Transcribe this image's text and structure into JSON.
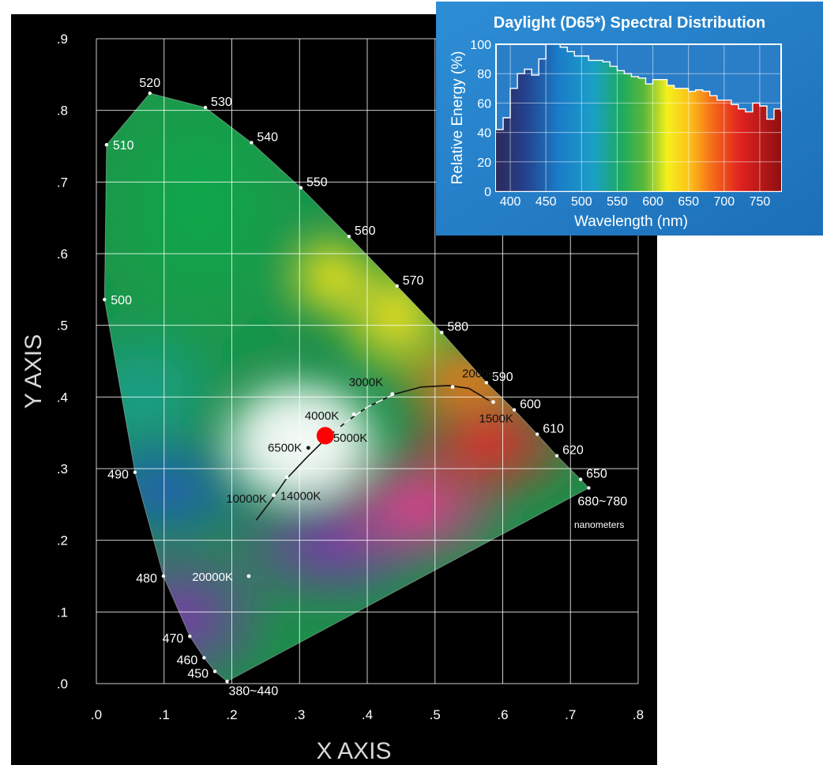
{
  "chart_data": [
    {
      "type": "scatter",
      "name": "chromaticity-diagram",
      "xlabel": "X  AXIS",
      "ylabel": "Y AXIS",
      "xlim": [
        0,
        0.8
      ],
      "ylim": [
        0,
        0.9
      ],
      "grid": true,
      "x_ticks": [
        {
          "v": 0.0,
          "label": ".0"
        },
        {
          "v": 0.1,
          "label": ".1"
        },
        {
          "v": 0.2,
          "label": ".2"
        },
        {
          "v": 0.3,
          "label": ".3"
        },
        {
          "v": 0.4,
          "label": ".4"
        },
        {
          "v": 0.5,
          "label": ".5"
        },
        {
          "v": 0.6,
          "label": ".6"
        },
        {
          "v": 0.7,
          "label": ".7"
        },
        {
          "v": 0.8,
          "label": ".8"
        }
      ],
      "y_ticks": [
        {
          "v": 0.0,
          "label": ".0"
        },
        {
          "v": 0.1,
          "label": ".1"
        },
        {
          "v": 0.2,
          "label": ".2"
        },
        {
          "v": 0.3,
          "label": ".3"
        },
        {
          "v": 0.4,
          "label": ".4"
        },
        {
          "v": 0.5,
          "label": ".5"
        },
        {
          "v": 0.6,
          "label": ".6"
        },
        {
          "v": 0.7,
          "label": ".7"
        },
        {
          "v": 0.8,
          "label": ".8"
        },
        {
          "v": 0.9,
          "label": ".9"
        }
      ],
      "spectral_locus": [
        {
          "label": "380~440",
          "x": 0.193,
          "y": 0.003
        },
        {
          "label": "450",
          "x": 0.175,
          "y": 0.017
        },
        {
          "label": "460",
          "x": 0.159,
          "y": 0.036
        },
        {
          "label": "470",
          "x": 0.138,
          "y": 0.066
        },
        {
          "label": "480",
          "x": 0.099,
          "y": 0.15
        },
        {
          "label": "490",
          "x": 0.057,
          "y": 0.295
        },
        {
          "label": "500",
          "x": 0.012,
          "y": 0.536
        },
        {
          "label": "510",
          "x": 0.015,
          "y": 0.752
        },
        {
          "label": "520",
          "x": 0.079,
          "y": 0.824
        },
        {
          "label": "530",
          "x": 0.161,
          "y": 0.804
        },
        {
          "label": "540",
          "x": 0.229,
          "y": 0.755
        },
        {
          "label": "550",
          "x": 0.302,
          "y": 0.692
        },
        {
          "label": "560",
          "x": 0.373,
          "y": 0.624
        },
        {
          "label": "570",
          "x": 0.444,
          "y": 0.555
        },
        {
          "label": "580",
          "x": 0.51,
          "y": 0.49
        },
        {
          "label": "590",
          "x": 0.576,
          "y": 0.42
        },
        {
          "label": "600",
          "x": 0.617,
          "y": 0.382
        },
        {
          "label": "610",
          "x": 0.651,
          "y": 0.348
        },
        {
          "label": "620",
          "x": 0.68,
          "y": 0.318
        },
        {
          "label": "650",
          "x": 0.715,
          "y": 0.285
        },
        {
          "label": "680~780",
          "x": 0.727,
          "y": 0.273
        }
      ],
      "range_note": "nanometers",
      "color_temperatures": [
        {
          "label": "1500K",
          "x": 0.586,
          "y": 0.393
        },
        {
          "label": "2000K",
          "x": 0.526,
          "y": 0.414
        },
        {
          "label": "3000K",
          "x": 0.437,
          "y": 0.404
        },
        {
          "label": "4000K",
          "x": 0.38,
          "y": 0.376
        },
        {
          "label": "5000K",
          "x": 0.345,
          "y": 0.352
        },
        {
          "label": "6500K",
          "x": 0.313,
          "y": 0.329
        },
        {
          "label": "10000K",
          "x": 0.281,
          "y": 0.288
        },
        {
          "label": "14000K",
          "x": 0.262,
          "y": 0.263
        },
        {
          "label": "20000K",
          "x": 0.225,
          "y": 0.15
        }
      ],
      "highlight_point": {
        "x": 0.338,
        "y": 0.346,
        "color": "#ff0000"
      }
    },
    {
      "type": "area",
      "name": "d65-spectrum",
      "title": "Daylight (D65*) Spectral Distribution",
      "xlabel": "Wavelength (nm)",
      "ylabel": "Relative Energy (%)",
      "xlim": [
        380,
        780
      ],
      "ylim": [
        0,
        100
      ],
      "grid": true,
      "x_ticks": [
        400,
        450,
        500,
        550,
        600,
        650,
        700,
        750
      ],
      "y_ticks": [
        0,
        20,
        40,
        60,
        80,
        100
      ],
      "x": [
        380,
        390,
        400,
        410,
        420,
        430,
        440,
        450,
        460,
        470,
        480,
        490,
        500,
        510,
        520,
        530,
        540,
        550,
        560,
        570,
        580,
        590,
        600,
        610,
        620,
        630,
        640,
        650,
        660,
        670,
        680,
        690,
        700,
        710,
        720,
        730,
        740,
        750,
        760,
        770,
        780
      ],
      "values": [
        42,
        50,
        70,
        80,
        83,
        79,
        90,
        100,
        100,
        98,
        95,
        92,
        92,
        89,
        89,
        88,
        85,
        82,
        80,
        78,
        77,
        73,
        76,
        76,
        72,
        70,
        70,
        68,
        69,
        68,
        65,
        62,
        62,
        59,
        56,
        54,
        60,
        58,
        49,
        56,
        54
      ]
    }
  ]
}
